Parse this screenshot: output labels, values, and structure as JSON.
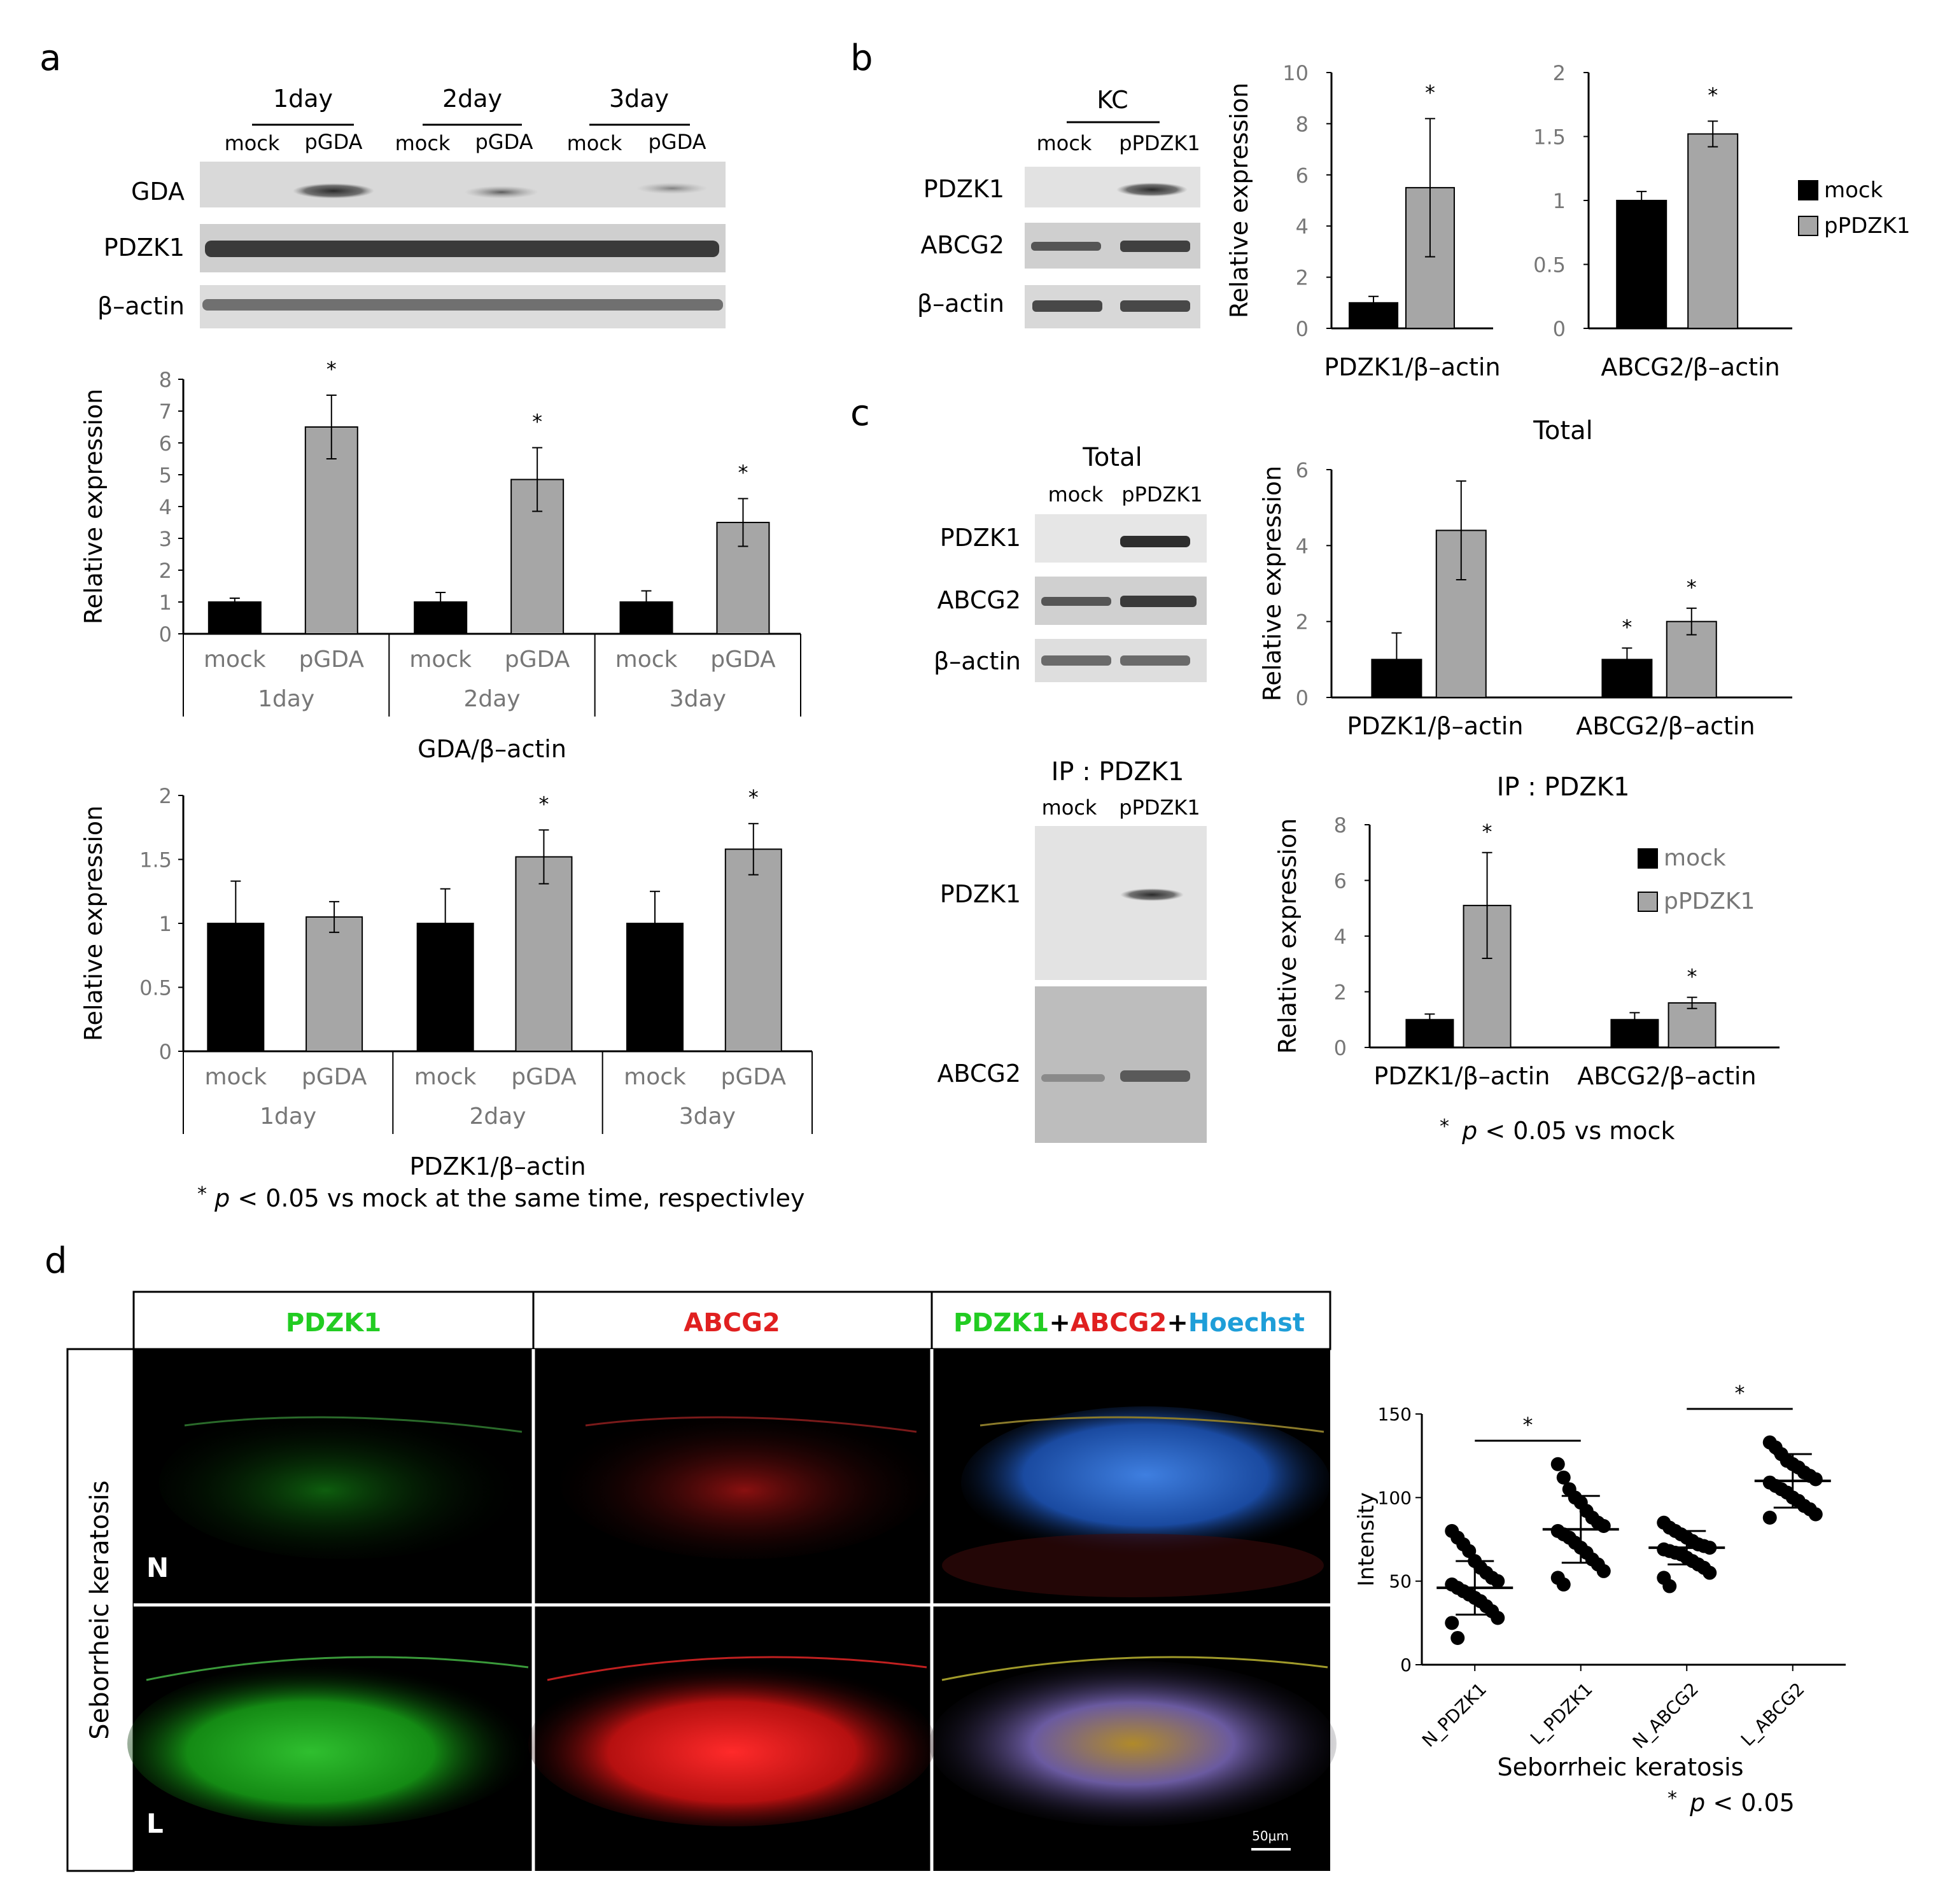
{
  "panel_letters": {
    "a": "a",
    "b": "b",
    "c": "c",
    "d": "d"
  },
  "common": {
    "mock": "mock",
    "pGDA": "pGDA",
    "pPDZK1": "pPDZK1",
    "GDA": "GDA",
    "PDZK1": "PDZK1",
    "ABCG2": "ABCG2",
    "bactin": "β–actin",
    "rel_expr": "Relative expression",
    "star": "*"
  },
  "panel_a": {
    "days": [
      "1day",
      "2day",
      "3day"
    ],
    "note_star": "*",
    "note_p": "p",
    "note_rest": " < 0.05 vs mock at the same time, respectivley"
  },
  "panel_b": {
    "kc": "KC"
  },
  "panel_c": {
    "total": "Total",
    "ip": "IP : PDZK1",
    "note_star": "*",
    "note_p": "p",
    "note_rest": " < 0.05 vs mock"
  },
  "panel_d": {
    "col_pdzk1": "PDZK1",
    "col_abcg2": "ABCG2",
    "merge_a": "PDZK1",
    "merge_plus1": "+",
    "merge_b": "ABCG2",
    "merge_plus2": "+",
    "merge_c": "Hoechst",
    "row_title": "Seborrheic keratosis",
    "row_n": "N",
    "row_l": "L",
    "scale": "50μm",
    "note_star": "*",
    "note_p": "p",
    "note_rest": " < 0.05"
  },
  "colors": {
    "mock": "#000000",
    "treated": "#a6a6a6",
    "green": "#22cc22",
    "red": "#e02020",
    "blue": "#1e9ed8"
  },
  "chart_data": [
    {
      "id": "a1",
      "type": "bar",
      "xlabel": "GDA/β–actin",
      "ylabel": "Relative expression",
      "ylim": [
        0,
        8
      ],
      "yticks": [
        "0",
        "1",
        "2",
        "3",
        "4",
        "5",
        "6",
        "7",
        "8"
      ],
      "groups": [
        "1day",
        "2day",
        "3day"
      ],
      "bars": [
        "mock",
        "pGDA"
      ],
      "values": [
        [
          1,
          6.5
        ],
        [
          1,
          4.85
        ],
        [
          1,
          3.5
        ]
      ],
      "errors": [
        [
          0.12,
          1.0
        ],
        [
          0.3,
          1.0
        ],
        [
          0.35,
          0.75
        ]
      ],
      "significant": [
        [
          false,
          true
        ],
        [
          false,
          true
        ],
        [
          false,
          true
        ]
      ]
    },
    {
      "id": "a2",
      "type": "bar",
      "xlabel": "PDZK1/β–actin",
      "ylabel": "Relative expression",
      "ylim": [
        0,
        2
      ],
      "yticks": [
        "0",
        "0.5",
        "1",
        "1.5",
        "2"
      ],
      "groups": [
        "1day",
        "2day",
        "3day"
      ],
      "bars": [
        "mock",
        "pGDA"
      ],
      "values": [
        [
          1,
          1.05
        ],
        [
          1,
          1.52
        ],
        [
          1,
          1.58
        ]
      ],
      "errors": [
        [
          0.33,
          0.12
        ],
        [
          0.27,
          0.21
        ],
        [
          0.25,
          0.2
        ]
      ],
      "significant": [
        [
          false,
          false
        ],
        [
          false,
          true
        ],
        [
          false,
          true
        ]
      ]
    },
    {
      "id": "b1",
      "type": "bar",
      "xlabel": "PDZK1/β–actin",
      "ylabel": "Relative expression",
      "ylim": [
        0,
        10
      ],
      "yticks": [
        "0",
        "2",
        "4",
        "6",
        "8",
        "10"
      ],
      "series": [
        {
          "name": "mock",
          "values": [
            1
          ]
        },
        {
          "name": "pPDZK1",
          "values": [
            5.5
          ]
        }
      ],
      "errors": [
        [
          0.25,
          2.7
        ]
      ],
      "significant": [
        [
          false,
          true
        ]
      ]
    },
    {
      "id": "b2",
      "type": "bar",
      "xlabel": "ABCG2/β–actin",
      "ylim": [
        0,
        2
      ],
      "yticks": [
        "0",
        "0.5",
        "1",
        "1.5",
        "2"
      ],
      "series": [
        {
          "name": "mock",
          "values": [
            1
          ]
        },
        {
          "name": "pPDZK1",
          "values": [
            1.52
          ]
        }
      ],
      "errors": [
        [
          0.07,
          0.1
        ]
      ],
      "significant": [
        [
          false,
          true
        ]
      ],
      "legend": [
        "mock",
        "pPDZK1"
      ],
      "legend_position": "right"
    },
    {
      "id": "c1",
      "type": "bar",
      "title": "Total",
      "ylabel": "Relative expression",
      "ylim": [
        0,
        6
      ],
      "yticks": [
        "0",
        "2",
        "4",
        "6"
      ],
      "categories": [
        "PDZK1/β–actin",
        "ABCG2/β–actin"
      ],
      "series": [
        {
          "name": "mock",
          "values": [
            1,
            1
          ]
        },
        {
          "name": "pPDZK1",
          "values": [
            4.4,
            2
          ]
        }
      ],
      "errors": [
        [
          0.7,
          0.3
        ],
        [
          1.3,
          0.35
        ]
      ],
      "significant": [
        [
          false,
          true
        ],
        [
          false,
          true
        ]
      ]
    },
    {
      "id": "c2",
      "type": "bar",
      "title": "IP : PDZK1",
      "ylabel": "Relative expression",
      "ylim": [
        0,
        8
      ],
      "yticks": [
        "0",
        "2",
        "4",
        "6",
        "8"
      ],
      "categories": [
        "PDZK1/β–actin",
        "ABCG2/β–actin"
      ],
      "series": [
        {
          "name": "mock",
          "values": [
            1,
            1
          ]
        },
        {
          "name": "pPDZK1",
          "values": [
            5.1,
            1.6
          ]
        }
      ],
      "errors": [
        [
          0.2,
          0.25
        ],
        [
          1.9,
          0.2
        ]
      ],
      "significant": [
        [
          false,
          false
        ],
        [
          true,
          true
        ]
      ],
      "legend": [
        "mock",
        "pPDZK1"
      ],
      "legend_position": "top-right"
    },
    {
      "id": "d1",
      "type": "scatter",
      "xlabel": "Seborrheic keratosis",
      "ylabel": "Intensity",
      "ylim": [
        0,
        150
      ],
      "yticks": [
        "0",
        "50",
        "100",
        "150"
      ],
      "categories": [
        "N_PDZK1",
        "L_PDZK1",
        "N_ABCG2",
        "L_ABCG2"
      ],
      "means": [
        46,
        81,
        70,
        110
      ],
      "sds": [
        16,
        20,
        10,
        16
      ],
      "points": [
        [
          80,
          76,
          72,
          68,
          62,
          58,
          55,
          52,
          50,
          48,
          46,
          44,
          42,
          40,
          38,
          35,
          32,
          28,
          25,
          16
        ],
        [
          120,
          112,
          105,
          100,
          97,
          92,
          88,
          85,
          83,
          80,
          78,
          76,
          73,
          70,
          67,
          63,
          60,
          56,
          52,
          48
        ],
        [
          85,
          82,
          80,
          78,
          76,
          74,
          72,
          71,
          70,
          69,
          68,
          67,
          66,
          64,
          62,
          60,
          58,
          55,
          52,
          47
        ],
        [
          133,
          130,
          126,
          122,
          120,
          118,
          115,
          113,
          111,
          109,
          107,
          105,
          103,
          100,
          98,
          95,
          93,
          90,
          88
        ]
      ],
      "significance": [
        [
          "N_PDZK1",
          "L_PDZK1"
        ],
        [
          "N_ABCG2",
          "L_ABCG2"
        ]
      ]
    }
  ]
}
